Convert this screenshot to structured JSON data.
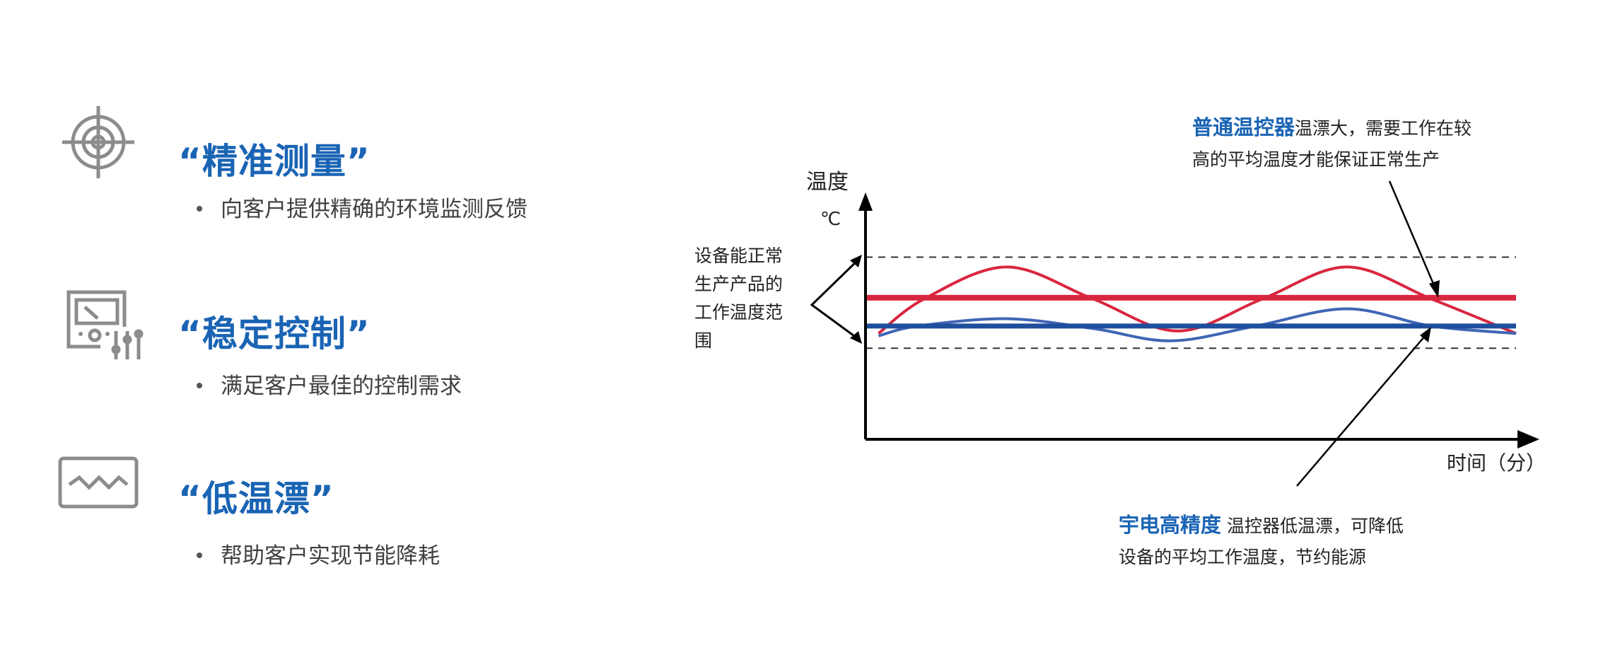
{
  "features": [
    {
      "icon": "target-icon",
      "title": "“精准测量”",
      "bullet": "向客户提供精确的环境监测反馈"
    },
    {
      "icon": "meter-sliders-icon",
      "title": "“稳定控制”",
      "bullet": "满足客户最佳的控制需求"
    },
    {
      "icon": "waveform-icon",
      "title": "“低温漂”",
      "bullet": "帮助客户实现节能降耗"
    }
  ],
  "colors": {
    "title_blue": "#1a64b4",
    "icon_gray": "#8c8c8c",
    "red": "#d9263f",
    "blue_line": "#1f4e9c",
    "blue_wave": "#3f66b5"
  },
  "chart": {
    "y_label": "温度",
    "y_unit": "℃",
    "x_label": "时间（分）",
    "range_label": [
      "设备能正常",
      "生产产品的",
      "工作温度范",
      "围"
    ],
    "top_note": {
      "highlight": "普通温控器",
      "line1": "温漂大，需要工作在较",
      "line2": "高的平均温度才能保证正常生产"
    },
    "bottom_note": {
      "highlight": "宇电高精度",
      "line1": " 温控器低温漂，可降低",
      "line2": "设备的平均工作温度，节约能源"
    }
  },
  "chart_data": {
    "type": "line",
    "xlabel": "时间（分）",
    "ylabel": "温度 ℃",
    "xlim": [
      0,
      100
    ],
    "ylim": [
      0,
      100
    ],
    "grid": false,
    "reference_lines": {
      "working_range_upper": 74,
      "working_range_lower": 37,
      "ordinary_mean": 57.5,
      "yudian_mean": 46
    },
    "series": [
      {
        "color": "#d9263f",
        "x": [
          2,
          9,
          21.7,
          35,
          48,
          61,
          74,
          87,
          100
        ],
        "y": [
          43,
          57,
          70,
          57,
          44,
          57,
          70,
          57,
          43
        ]
      },
      {
        "color": "#3f66b5",
        "x": [
          2,
          8,
          21.7,
          35,
          47,
          60,
          74,
          87,
          100
        ],
        "y": [
          42,
          46,
          49,
          45,
          40,
          46,
          53,
          46,
          43
        ]
      }
    ]
  }
}
